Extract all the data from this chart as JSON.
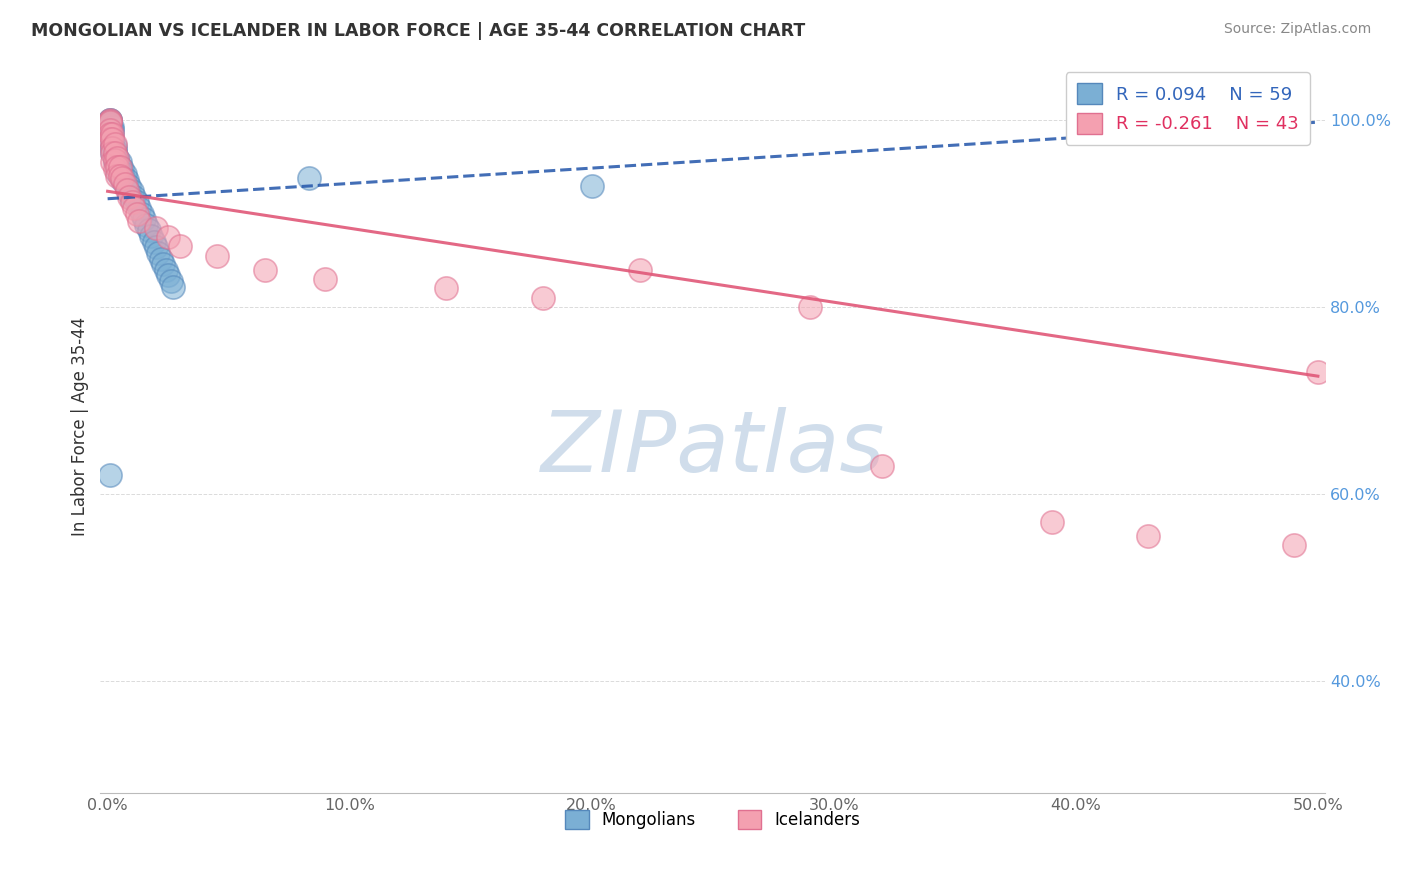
{
  "title": "MONGOLIAN VS ICELANDER IN LABOR FORCE | AGE 35-44 CORRELATION CHART",
  "source": "Source: ZipAtlas.com",
  "ylabel": "In Labor Force | Age 35-44",
  "xlim": [
    -0.003,
    0.503
  ],
  "ylim": [
    0.28,
    1.065
  ],
  "mongolian_R": 0.094,
  "mongolian_N": 59,
  "icelander_R": -0.261,
  "icelander_N": 43,
  "mongolian_color": "#7BAFD4",
  "icelander_color": "#F4A0B0",
  "mongolian_edge_color": "#5588BB",
  "icelander_edge_color": "#E07090",
  "mongolian_trend_color": "#2255AA",
  "icelander_trend_color": "#E05878",
  "background_color": "#FFFFFF",
  "grid_color": "#CCCCCC",
  "ytick_color": "#5599DD",
  "xtick_color": "#666666",
  "watermark_color": "#C8D8E8",
  "mongo_x": [
    0.001,
    0.001,
    0.001,
    0.001,
    0.001,
    0.001,
    0.001,
    0.001,
    0.001,
    0.002,
    0.002,
    0.002,
    0.002,
    0.002,
    0.002,
    0.002,
    0.003,
    0.003,
    0.003,
    0.003,
    0.003,
    0.004,
    0.004,
    0.004,
    0.004,
    0.005,
    0.005,
    0.005,
    0.006,
    0.006,
    0.006,
    0.007,
    0.007,
    0.008,
    0.008,
    0.009,
    0.009,
    0.01,
    0.01,
    0.011,
    0.012,
    0.013,
    0.014,
    0.015,
    0.016,
    0.017,
    0.018,
    0.019,
    0.02,
    0.021,
    0.022,
    0.023,
    0.024,
    0.025,
    0.026,
    0.027,
    0.001,
    0.083,
    0.2
  ],
  "mongo_y": [
    1.0,
    1.0,
    0.999,
    0.998,
    0.997,
    0.996,
    0.995,
    0.99,
    0.985,
    0.993,
    0.99,
    0.985,
    0.98,
    0.975,
    0.97,
    0.965,
    0.972,
    0.968,
    0.965,
    0.96,
    0.955,
    0.96,
    0.955,
    0.95,
    0.945,
    0.955,
    0.95,
    0.945,
    0.948,
    0.942,
    0.936,
    0.942,
    0.935,
    0.936,
    0.928,
    0.93,
    0.922,
    0.924,
    0.916,
    0.918,
    0.912,
    0.906,
    0.9,
    0.894,
    0.888,
    0.882,
    0.876,
    0.87,
    0.864,
    0.858,
    0.852,
    0.846,
    0.84,
    0.834,
    0.828,
    0.822,
    0.62,
    0.938,
    0.93
  ],
  "icel_x": [
    0.001,
    0.001,
    0.001,
    0.001,
    0.001,
    0.001,
    0.002,
    0.002,
    0.002,
    0.002,
    0.002,
    0.003,
    0.003,
    0.003,
    0.003,
    0.004,
    0.004,
    0.004,
    0.005,
    0.005,
    0.006,
    0.007,
    0.008,
    0.009,
    0.01,
    0.011,
    0.012,
    0.013,
    0.02,
    0.025,
    0.03,
    0.045,
    0.065,
    0.09,
    0.14,
    0.18,
    0.22,
    0.29,
    0.32,
    0.39,
    0.43,
    0.49,
    0.5
  ],
  "icel_y": [
    1.0,
    0.999,
    0.998,
    0.99,
    0.985,
    0.98,
    0.985,
    0.98,
    0.97,
    0.965,
    0.955,
    0.975,
    0.965,
    0.958,
    0.948,
    0.96,
    0.95,
    0.94,
    0.95,
    0.94,
    0.938,
    0.932,
    0.925,
    0.918,
    0.912,
    0.906,
    0.9,
    0.892,
    0.885,
    0.875,
    0.865,
    0.855,
    0.84,
    0.83,
    0.82,
    0.81,
    0.84,
    0.8,
    0.63,
    0.57,
    0.555,
    0.545,
    0.73
  ],
  "icel_trend_x0": 0.0,
  "icel_trend_y0": 0.924,
  "icel_trend_x1": 0.5,
  "icel_trend_y1": 0.726,
  "mongo_trend_x0": 0.0,
  "mongo_trend_y0": 0.916,
  "mongo_trend_x1": 0.5,
  "mongo_trend_y1": 0.998
}
